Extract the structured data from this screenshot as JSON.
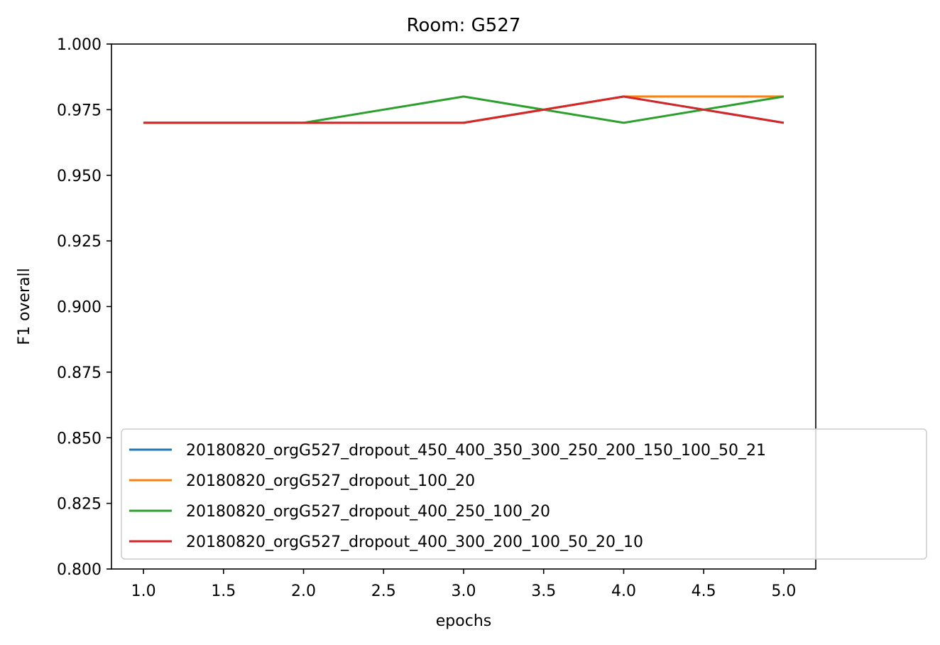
{
  "chart_data": {
    "type": "line",
    "title": "Room: G527",
    "xlabel": "epochs",
    "ylabel": "F1 overall",
    "xlim": [
      0.8,
      5.2
    ],
    "ylim": [
      0.8,
      1.0
    ],
    "x_ticks": [
      "1.0",
      "1.5",
      "2.0",
      "2.5",
      "3.0",
      "3.5",
      "4.0",
      "4.5",
      "5.0"
    ],
    "y_ticks": [
      "0.800",
      "0.825",
      "0.850",
      "0.875",
      "0.900",
      "0.925",
      "0.950",
      "0.975",
      "1.000"
    ],
    "grid": false,
    "legend_position": "lower-right",
    "x": [
      1,
      2,
      3,
      4,
      5
    ],
    "series": [
      {
        "name": "20180820_orgG527_dropout_450_400_350_300_250_200_150_100_50_21",
        "color": "#1f77b4",
        "values": [
          0.97,
          0.97,
          0.97,
          0.98,
          0.97
        ]
      },
      {
        "name": "20180820_orgG527_dropout_100_20",
        "color": "#ff7f0e",
        "values": [
          0.97,
          0.97,
          0.97,
          0.98,
          0.98
        ]
      },
      {
        "name": "20180820_orgG527_dropout_400_250_100_20",
        "color": "#2ca02c",
        "values": [
          0.97,
          0.97,
          0.98,
          0.97,
          0.98
        ]
      },
      {
        "name": "20180820_orgG527_dropout_400_300_200_100_50_20_10",
        "color": "#d62728",
        "values": [
          0.97,
          0.97,
          0.97,
          0.98,
          0.97
        ]
      }
    ]
  }
}
